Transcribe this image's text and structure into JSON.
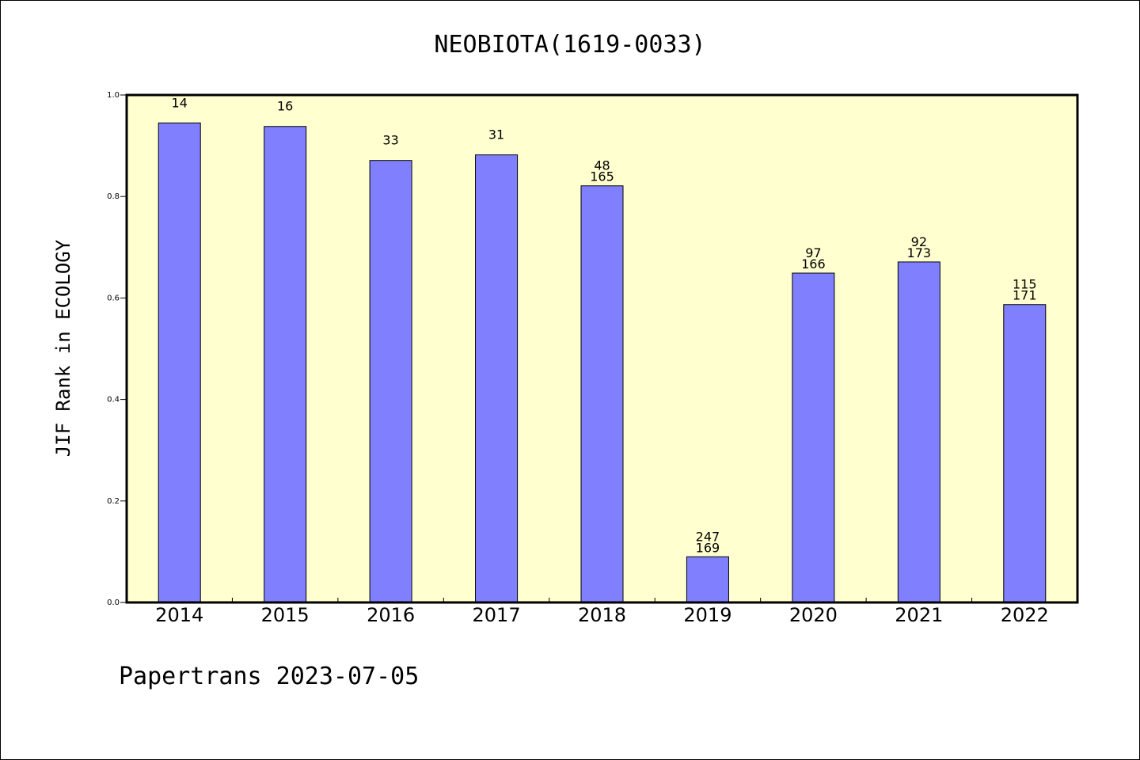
{
  "chart_data": {
    "type": "bar",
    "title": "NEOBIOTA(1619-0033)",
    "ylabel": "JIF Rank in ECOLOGY",
    "xlabel": "",
    "ylim": [
      0,
      1.0
    ],
    "yticks": [
      "0.0",
      "0.2",
      "0.4",
      "0.6",
      "0.8",
      "1.0"
    ],
    "categories": [
      "2014",
      "2015",
      "2016",
      "2017",
      "2018",
      "2019",
      "2020",
      "2021",
      "2022"
    ],
    "values": [
      0.945,
      0.938,
      0.871,
      0.882,
      0.821,
      0.09,
      0.649,
      0.671,
      0.587
    ],
    "data_labels": [
      [
        "14"
      ],
      [
        "16"
      ],
      [
        "33"
      ],
      [
        "31"
      ],
      [
        "48",
        "165"
      ],
      [
        "247",
        "169"
      ],
      [
        "97",
        "166"
      ],
      [
        "92",
        "173"
      ],
      [
        "115",
        "171"
      ]
    ],
    "grid": false,
    "colors": {
      "plot_background": "#ffffd0",
      "bar_fill": "#8080ff",
      "bar_stroke": "#000000"
    }
  },
  "footer": {
    "text": "Papertrans 2023-07-05"
  }
}
